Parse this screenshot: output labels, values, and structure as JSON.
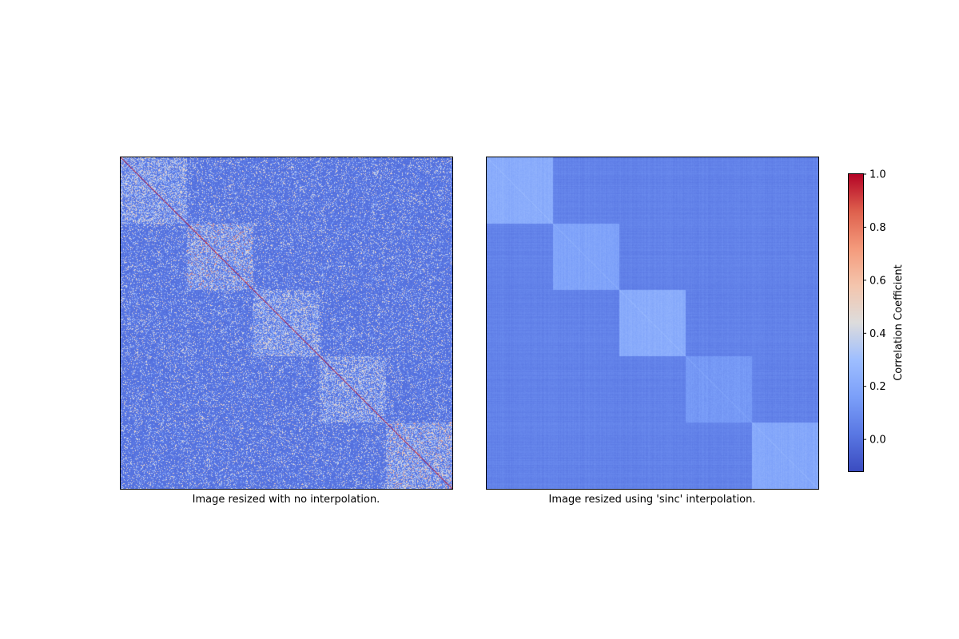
{
  "chart_data": [
    {
      "type": "heatmap",
      "title": "",
      "xlabel": "Image resized with no interpolation.",
      "ylabel": "",
      "interpolation": "none",
      "matrix_size": 600,
      "cluster_boundaries": [
        0,
        0.2,
        0.4,
        0.6,
        0.8,
        1.0
      ],
      "value_summary": {
        "diagonal": 1.0,
        "off_diagonal_typical": 0.0
      },
      "axes_ticks": "hidden"
    },
    {
      "type": "heatmap",
      "title": "",
      "xlabel": "Image resized using 'sinc' interpolation.",
      "ylabel": "",
      "interpolation": "sinc",
      "matrix_size": 600,
      "cluster_boundaries": [
        0,
        0.2,
        0.4,
        0.6,
        0.8,
        1.0
      ],
      "value_summary": {
        "within_cluster": 0.2,
        "between_cluster": 0.05
      },
      "axes_ticks": "hidden"
    }
  ],
  "colorbar": {
    "label": "Correlation Coefficient",
    "colormap": "coolwarm",
    "vmin": -0.12,
    "vmax": 1.0,
    "ticks": [
      {
        "value": 0.0,
        "text": "0.0"
      },
      {
        "value": 0.2,
        "text": "0.2"
      },
      {
        "value": 0.4,
        "text": "0.4"
      },
      {
        "value": 0.6,
        "text": "0.6"
      },
      {
        "value": 0.8,
        "text": "0.8"
      },
      {
        "value": 1.0,
        "text": "1.0"
      }
    ]
  },
  "colors": {
    "cold": "#3b4cc0",
    "neutral": "#dddddd",
    "hot": "#b40426"
  }
}
